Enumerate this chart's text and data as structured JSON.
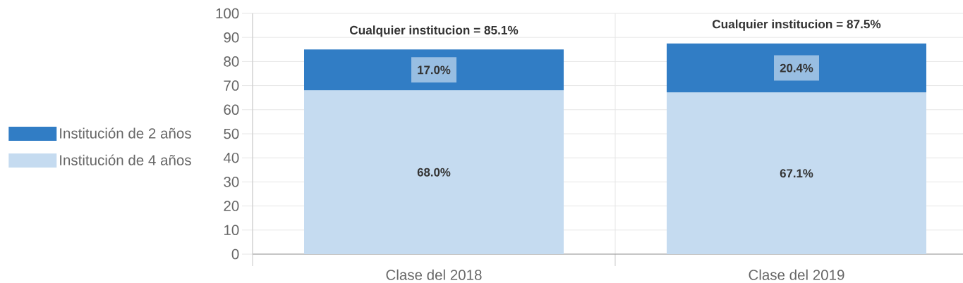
{
  "chart_data": {
    "type": "bar",
    "stacked": true,
    "categories": [
      "Clase del 2018",
      "Clase del 2019"
    ],
    "series": [
      {
        "name": "Institución de 4 años",
        "color": "#c5dbf0",
        "values": [
          68.0,
          67.1
        ],
        "value_labels": [
          "68.0%",
          "67.1%"
        ]
      },
      {
        "name": "Institución de 2 años",
        "color": "#317dc5",
        "values": [
          17.0,
          20.4
        ],
        "value_labels": [
          "17.0%",
          "20.4%"
        ]
      }
    ],
    "totals": [
      "Cualquier institucion = 85.1%",
      "Cualquier institucion = 87.5%"
    ],
    "ylim": [
      0,
      100
    ],
    "yticks": [
      0,
      10,
      20,
      30,
      40,
      50,
      60,
      70,
      80,
      90,
      100
    ],
    "grid": true,
    "legend": "left"
  }
}
